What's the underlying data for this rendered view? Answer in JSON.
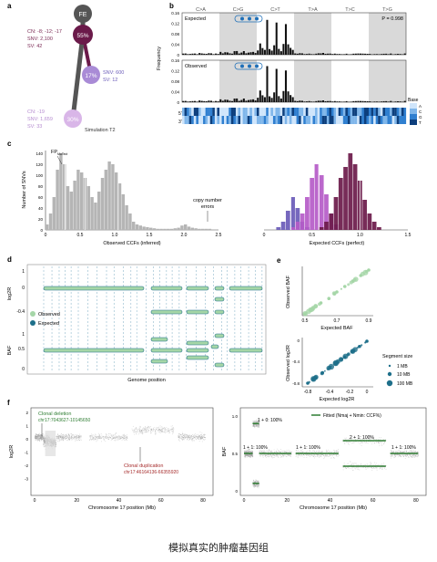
{
  "figure": {
    "caption": "模拟真实的肿瘤基因组",
    "panel_labels": [
      "a",
      "b",
      "c",
      "d",
      "e",
      "f"
    ]
  },
  "panel_a": {
    "nodes": [
      {
        "label": "FE",
        "color": "#555555"
      },
      {
        "label": "55%",
        "color": "#6b1a4a"
      },
      {
        "label": "17%",
        "color": "#a98bd6"
      },
      {
        "label": "30%",
        "color": "#d9b6e8"
      }
    ],
    "annotations": [
      {
        "lines": [
          "CN: -8; -12; -17",
          "SNV: 2,100",
          "SV: 42"
        ],
        "color": "#7b2a55"
      },
      {
        "lines": [
          "SNV: 600",
          "SV: 12"
        ],
        "color": "#6a5bb8"
      },
      {
        "lines": [
          "CN: -19",
          "SNV: 1,659",
          "SV: 33"
        ],
        "color": "#b58bd0"
      }
    ],
    "simulation_label": "Simulation T2"
  },
  "panel_b": {
    "categories": [
      "C>A",
      "C>G",
      "C>T",
      "T>A",
      "T>C",
      "T>G"
    ],
    "rows": [
      "Expected",
      "Observed"
    ],
    "p_value": "P = 0.998",
    "ylabel": "Frequency",
    "yticks": [
      "0.16",
      "0.12",
      "0.08",
      "0.04",
      "0"
    ],
    "legend_title": "Base",
    "legend_items": [
      "A",
      "C",
      "G",
      "T"
    ],
    "strand_labels": [
      "5'",
      "3'"
    ]
  },
  "panel_c": {
    "left": {
      "xlabel": "Observed CCFs (inferred)",
      "ylabel": "Number of SNVs",
      "xticks": [
        "0",
        "0.5",
        "1.0",
        "1.5",
        "2.0",
        "2.5"
      ],
      "yticks": [
        "0",
        "20",
        "40",
        "60",
        "80",
        "100",
        "120",
        "140"
      ],
      "annot_fp": "FP",
      "annot_fp_sub": "MuTect",
      "annot_errors": [
        "copy number",
        "errors"
      ]
    },
    "right": {
      "xlabel": "Expected CCFs (perfect)",
      "xticks": [
        "0",
        "0.5",
        "1.0",
        "1.5"
      ],
      "colors": [
        "#6a5bb8",
        "#b55bc8",
        "#6b1a4a"
      ]
    }
  },
  "panel_d": {
    "ylabel_top": "log2R",
    "ylabel_bottom": "BAF",
    "yticks_top": [
      "1",
      "0",
      "-0.4"
    ],
    "yticks_bottom": [
      "1",
      "0.5",
      "0"
    ],
    "legend": [
      {
        "label": "Observed",
        "color": "#a5d6a7"
      },
      {
        "label": "Expected",
        "color": "#1e6f8a"
      }
    ],
    "xlabel": "Genome position"
  },
  "panel_e": {
    "top": {
      "xlabel": "Expected BAF",
      "ylabel": "Observed BAF",
      "ticks": [
        "0.5",
        "0.7",
        "0.9"
      ]
    },
    "bottom": {
      "xlabel": "Expected log2R",
      "ylabel": "Observed log2R",
      "xticks": [
        "-0.8",
        "-0.4",
        "-0.2",
        "0"
      ],
      "yticks": [
        "0",
        "-0.4",
        "-0.8"
      ]
    },
    "legend_title": "Segment size",
    "legend_items": [
      "1 MB",
      "10 MB",
      "100 MB"
    ]
  },
  "panel_f": {
    "left": {
      "ylabel": "log2R",
      "xlabel": "Chromosome 17 position (Mb)",
      "xticks": [
        "0",
        "20",
        "40",
        "60",
        "80"
      ],
      "yticks": [
        "2",
        "1",
        "0",
        "-1",
        "-2",
        "-3"
      ],
      "deletion_label": [
        "Clonal deletion",
        "chr17:7043627-10145650"
      ],
      "duplication_label": [
        "Clonal duplication",
        "chr17:46164136-66355920"
      ]
    },
    "right": {
      "ylabel": "BAF",
      "xlabel": "Chromosome 17 position (Mb)",
      "xticks": [
        "0",
        "20",
        "40",
        "60",
        "80"
      ],
      "yticks": [
        "1.0",
        "0.5",
        "0"
      ],
      "legend": "Fitted (Nmaj + Nmin: CCF%)",
      "segments": [
        "1 + 0: 100%",
        "1 + 1: 100%",
        "1 + 1: 100%",
        "2 + 1: 100%",
        "1 + 1: 100%"
      ]
    }
  },
  "chart_data": [
    {
      "type": "bar",
      "title": "",
      "categories": [
        "C>A",
        "C>G",
        "C>T",
        "T>A",
        "T>C",
        "T>G"
      ],
      "series": [
        {
          "name": "Expected",
          "values": [
            0.006,
            0.012,
            0.145,
            0.006,
            0.004,
            0.004
          ]
        },
        {
          "name": "Observed",
          "values": [
            0.006,
            0.012,
            0.15,
            0.006,
            0.004,
            0.004
          ]
        }
      ],
      "ylabel": "Frequency",
      "ylim": [
        0,
        0.16
      ]
    },
    {
      "type": "bar",
      "title": "",
      "xlabel": "Observed CCFs (inferred)",
      "ylabel": "Number of SNVs",
      "x": [
        0.0,
        0.05,
        0.1,
        0.15,
        0.2,
        0.25,
        0.3,
        0.35,
        0.4,
        0.45,
        0.5,
        0.55,
        0.6,
        0.65,
        0.7,
        0.75,
        0.8,
        0.85,
        0.9,
        0.95,
        1.0,
        1.05,
        1.1,
        1.15,
        1.2,
        1.25,
        1.3,
        1.35,
        1.4,
        1.45,
        1.5,
        1.55,
        1.6,
        1.65,
        1.7,
        1.75,
        1.8,
        1.85,
        1.9,
        1.95,
        2.0,
        2.05,
        2.1,
        2.15,
        2.2,
        2.25,
        2.3,
        2.35,
        2.4,
        2.45,
        2.5
      ],
      "values": [
        10,
        30,
        60,
        110,
        140,
        120,
        80,
        70,
        90,
        110,
        105,
        95,
        80,
        60,
        50,
        70,
        95,
        110,
        125,
        120,
        105,
        85,
        65,
        45,
        30,
        15,
        10,
        8,
        6,
        5,
        4,
        3,
        2,
        2,
        2,
        2,
        2,
        3,
        4,
        8,
        10,
        6,
        4,
        3,
        2,
        2,
        2,
        2,
        1,
        1,
        0
      ],
      "ylim": [
        0,
        140
      ],
      "xlim": [
        0,
        2.5
      ]
    },
    {
      "type": "area",
      "title": "",
      "xlabel": "Expected CCFs (perfect)",
      "x": [
        0.1,
        0.15,
        0.2,
        0.25,
        0.3,
        0.35,
        0.4,
        0.45,
        0.5,
        0.55,
        0.6,
        0.65,
        0.7,
        0.75,
        0.8,
        0.85,
        0.9,
        0.95,
        1.0,
        1.05,
        1.1,
        1.15,
        1.2,
        1.25,
        1.3
      ],
      "series": [
        {
          "values": [
            0,
            5,
            15,
            35,
            60,
            40,
            15,
            5,
            0,
            0,
            0,
            0,
            0,
            0,
            0,
            0,
            0,
            0,
            0,
            0,
            0,
            0,
            0,
            0,
            0
          ]
        },
        {
          "values": [
            0,
            0,
            0,
            0,
            5,
            15,
            30,
            60,
            95,
            120,
            100,
            65,
            30,
            10,
            0,
            0,
            0,
            0,
            0,
            0,
            0,
            0,
            0,
            0,
            0
          ]
        },
        {
          "values": [
            0,
            0,
            0,
            0,
            0,
            0,
            0,
            0,
            0,
            0,
            5,
            15,
            30,
            60,
            95,
            115,
            140,
            120,
            90,
            55,
            30,
            15,
            5,
            0,
            0
          ]
        }
      ],
      "xlim": [
        0,
        1.5
      ]
    },
    {
      "type": "scatter",
      "title": "",
      "xlabel": "Expected BAF",
      "ylabel": "Observed BAF",
      "x": [
        0.5,
        0.55,
        0.6,
        0.65,
        0.7,
        0.75,
        0.8,
        0.85,
        0.9
      ],
      "y": [
        0.5,
        0.55,
        0.6,
        0.64,
        0.7,
        0.75,
        0.8,
        0.85,
        0.9
      ],
      "xlim": [
        0.5,
        0.9
      ]
    },
    {
      "type": "scatter",
      "title": "",
      "xlabel": "Expected log2R",
      "ylabel": "Observed log2R",
      "x": [
        -0.8,
        -0.7,
        -0.6,
        -0.5,
        -0.4,
        -0.3,
        -0.2,
        -0.1,
        0.0
      ],
      "y": [
        -0.8,
        -0.7,
        -0.6,
        -0.5,
        -0.4,
        -0.3,
        -0.2,
        -0.1,
        0.0
      ],
      "xlim": [
        -0.8,
        0
      ]
    }
  ]
}
